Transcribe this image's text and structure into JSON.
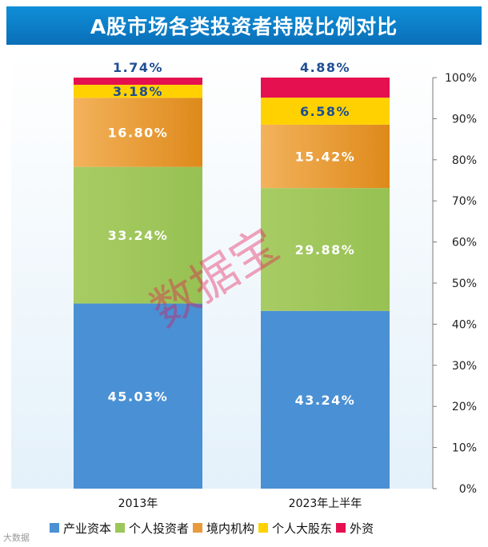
{
  "title": "A股市场各类投资者持股比例对比",
  "chart_data": {
    "type": "bar",
    "stacked": true,
    "categories": [
      "2013年",
      "2023年上半年"
    ],
    "series": [
      {
        "name": "产业资本",
        "color": "#4a90d4",
        "values": [
          45.03,
          43.24
        ],
        "labels": [
          "45.03%",
          "43.24%"
        ]
      },
      {
        "name": "个人投资者",
        "color": "#9dc65a",
        "values": [
          33.24,
          29.88
        ],
        "labels": [
          "33.24%",
          "29.88%"
        ]
      },
      {
        "name": "境内机构",
        "color": "#e89a3c",
        "values": [
          16.8,
          15.42
        ],
        "labels": [
          "16.80%",
          "15.42%"
        ]
      },
      {
        "name": "个人大股东",
        "color": "#ffd100",
        "values": [
          3.18,
          6.58
        ],
        "labels": [
          "3.18%",
          "6.58%"
        ]
      },
      {
        "name": "外资",
        "color": "#e4104f",
        "values": [
          1.74,
          4.88
        ],
        "labels": [
          "1.74%",
          "4.88%"
        ]
      }
    ],
    "ylim": [
      0,
      100
    ],
    "y_ticks": [
      "0%",
      "10%",
      "20%",
      "30%",
      "40%",
      "50%",
      "60%",
      "70%",
      "80%",
      "90%",
      "100%"
    ],
    "y_axis_side": "right",
    "legend_position": "bottom"
  },
  "watermark": "数据宝",
  "source_mark": "大数据"
}
